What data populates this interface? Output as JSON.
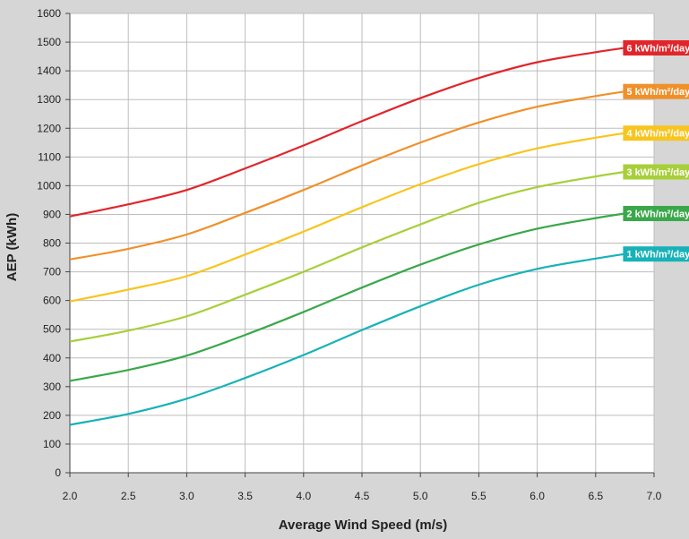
{
  "chart_data": {
    "type": "line",
    "title": "",
    "xlabel": "Average Wind Speed (m/s)",
    "ylabel": "AEP (kWh)",
    "xlim": [
      2.0,
      7.0
    ],
    "ylim": [
      0,
      1600
    ],
    "x_ticks": [
      "2.0",
      "2.5",
      "3.0",
      "3.5",
      "4.0",
      "4.5",
      "5.0",
      "5.5",
      "6.0",
      "6.5",
      "7.0"
    ],
    "y_ticks": [
      "0",
      "100",
      "200",
      "300",
      "400",
      "500",
      "600",
      "700",
      "800",
      "900",
      "1000",
      "1100",
      "1200",
      "1300",
      "1400",
      "1500",
      "1600"
    ],
    "grid": true,
    "x": [
      2.0,
      2.5,
      3.0,
      3.5,
      4.0,
      4.5,
      5.0,
      5.5,
      6.0,
      6.5,
      6.75
    ],
    "series": [
      {
        "name": "6 kWh/m²/day",
        "color": "#e0262b",
        "values": [
          893,
          935,
          985,
          1060,
          1140,
          1225,
          1305,
          1375,
          1430,
          1465,
          1480
        ]
      },
      {
        "name": "5 kWh/m²/day",
        "color": "#f0902a",
        "values": [
          743,
          780,
          830,
          905,
          985,
          1070,
          1150,
          1220,
          1275,
          1312,
          1328
        ]
      },
      {
        "name": "4 kWh/m²/day",
        "color": "#f7c51f",
        "values": [
          597,
          638,
          685,
          760,
          840,
          925,
          1005,
          1075,
          1130,
          1167,
          1183
        ]
      },
      {
        "name": "3 kWh/m²/day",
        "color": "#a8cf3a",
        "values": [
          457,
          495,
          545,
          620,
          700,
          785,
          865,
          940,
          995,
          1032,
          1048
        ]
      },
      {
        "name": "2 kWh/m²/day",
        "color": "#3aa84a",
        "values": [
          320,
          358,
          408,
          480,
          560,
          645,
          725,
          795,
          850,
          887,
          903
        ]
      },
      {
        "name": "1 kWh/m²/day",
        "color": "#17b2b8",
        "values": [
          167,
          205,
          258,
          330,
          410,
          497,
          580,
          655,
          710,
          746,
          762
        ]
      }
    ]
  }
}
